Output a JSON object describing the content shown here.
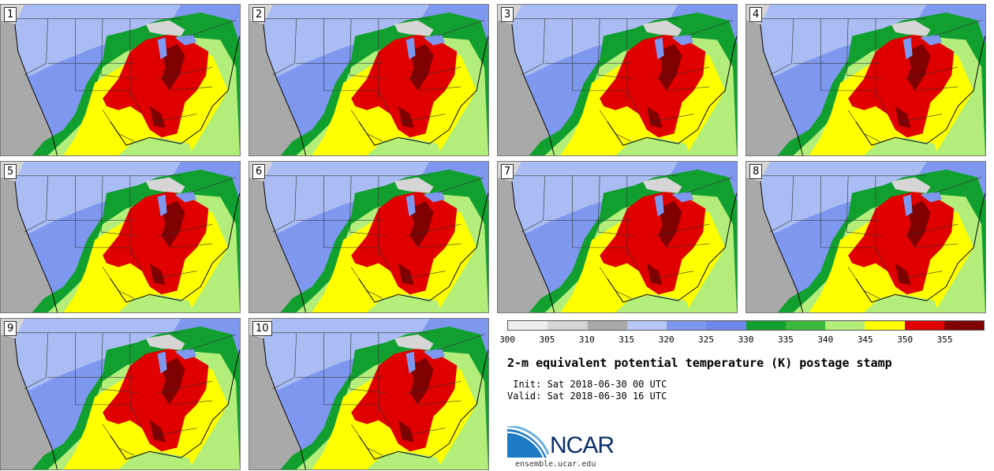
{
  "panels": [
    "1",
    "2",
    "3",
    "4",
    "5",
    "6",
    "7",
    "8",
    "9",
    "10"
  ],
  "colorbar": {
    "colors": [
      "#efefef",
      "#d6d6d6",
      "#a9a9a9",
      "#b7c7f7",
      "#7e98f0",
      "#6f86ec",
      "#11a02f",
      "#3cb83c",
      "#b3ee7a",
      "#ffff00",
      "#e00000",
      "#800000"
    ],
    "ticks": [
      "300",
      "305",
      "310",
      "315",
      "320",
      "325",
      "330",
      "335",
      "340",
      "345",
      "350",
      "355"
    ]
  },
  "title": "2-m equivalent potential temperature (K) postage stamp",
  "init": " Init: Sat 2018-06-30 00 UTC",
  "valid": "Valid: Sat 2018-06-30 16 UTC",
  "logo": {
    "text": "NCAR",
    "site": "ensemble.ucar.edu"
  }
}
